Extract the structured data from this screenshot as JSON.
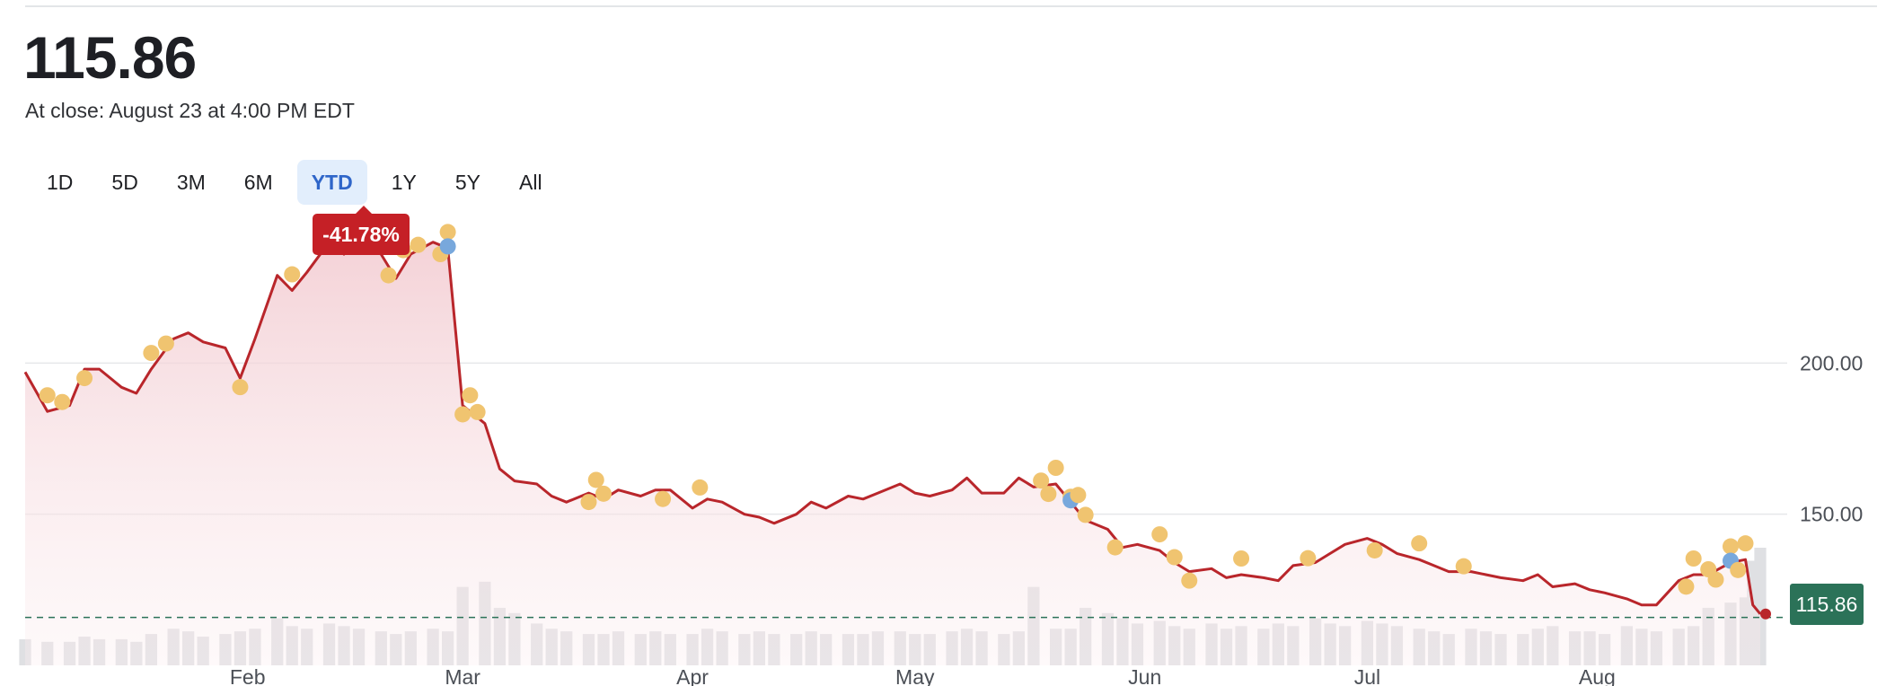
{
  "quote": {
    "price": "115.86",
    "close_note": "At close: August 23 at 4:00 PM EDT"
  },
  "ranges": {
    "tabs": [
      "1D",
      "5D",
      "3M",
      "6M",
      "YTD",
      "1Y",
      "5Y",
      "All"
    ],
    "selected": "YTD"
  },
  "badges": {
    "change_pct": "-41.78%",
    "last_price": "115.86"
  },
  "colors": {
    "line": "#b9262b",
    "area_fill": "#f4d4d8",
    "event_dot": "#f0c470",
    "event_dot_blue": "#78a8dc",
    "volume": "#dfe0e3",
    "baseline": "#2b7258",
    "active_tab": "#2f66c9"
  },
  "chart_data": {
    "type": "line",
    "ylim": [
      100,
      250
    ],
    "y_ticks": [
      "200.00",
      "150.00"
    ],
    "y_tick_values": [
      200,
      150
    ],
    "month_labels": [
      "Feb",
      "Mar",
      "Apr",
      "May",
      "Jun",
      "Jul",
      "Aug"
    ],
    "month_dates": [
      "2024-02-01",
      "2024-03-01",
      "2024-04-01",
      "2024-05-01",
      "2024-06-01",
      "2024-07-01",
      "2024-08-01"
    ],
    "baseline_value": 115.86,
    "x": [
      "2024-01-02",
      "2024-01-05",
      "2024-01-08",
      "2024-01-10",
      "2024-01-12",
      "2024-01-15",
      "2024-01-17",
      "2024-01-19",
      "2024-01-22",
      "2024-01-24",
      "2024-01-26",
      "2024-01-29",
      "2024-01-31",
      "2024-02-02",
      "2024-02-05",
      "2024-02-07",
      "2024-02-09",
      "2024-02-12",
      "2024-02-14",
      "2024-02-16",
      "2024-02-19",
      "2024-02-21",
      "2024-02-23",
      "2024-02-26",
      "2024-02-28",
      "2024-03-01",
      "2024-03-04",
      "2024-03-06",
      "2024-03-08",
      "2024-03-11",
      "2024-03-13",
      "2024-03-15",
      "2024-03-18",
      "2024-03-20",
      "2024-03-22",
      "2024-03-25",
      "2024-03-27",
      "2024-03-29",
      "2024-04-01",
      "2024-04-03",
      "2024-04-05",
      "2024-04-08",
      "2024-04-10",
      "2024-04-12",
      "2024-04-15",
      "2024-04-17",
      "2024-04-19",
      "2024-04-22",
      "2024-04-24",
      "2024-04-26",
      "2024-04-29",
      "2024-05-01",
      "2024-05-03",
      "2024-05-06",
      "2024-05-08",
      "2024-05-10",
      "2024-05-13",
      "2024-05-15",
      "2024-05-17",
      "2024-05-20",
      "2024-05-22",
      "2024-05-24",
      "2024-05-27",
      "2024-05-29",
      "2024-05-31",
      "2024-06-03",
      "2024-06-05",
      "2024-06-07",
      "2024-06-10",
      "2024-06-12",
      "2024-06-14",
      "2024-06-17",
      "2024-06-19",
      "2024-06-21",
      "2024-06-24",
      "2024-06-26",
      "2024-06-28",
      "2024-07-01",
      "2024-07-03",
      "2024-07-05",
      "2024-07-08",
      "2024-07-10",
      "2024-07-12",
      "2024-07-15",
      "2024-07-17",
      "2024-07-19",
      "2024-07-22",
      "2024-07-24",
      "2024-07-26",
      "2024-07-29",
      "2024-07-31",
      "2024-08-02",
      "2024-08-05",
      "2024-08-07",
      "2024-08-09",
      "2024-08-12",
      "2024-08-14",
      "2024-08-16",
      "2024-08-19",
      "2024-08-21",
      "2024-08-22",
      "2024-08-23"
    ],
    "series": [
      {
        "values": [
          197,
          184,
          186,
          198,
          198,
          192,
          190,
          198,
          208,
          210,
          207,
          205,
          195,
          208,
          229,
          224,
          230,
          240,
          236,
          243,
          236,
          228,
          236,
          240,
          238,
          186,
          180,
          165,
          161,
          160,
          156,
          154,
          157,
          155,
          158,
          156,
          158,
          158,
          152,
          155,
          154,
          150,
          149,
          147,
          150,
          154,
          152,
          156,
          155,
          157,
          160,
          157,
          156,
          158,
          162,
          157,
          157,
          162,
          159,
          160,
          154,
          148,
          145,
          139,
          140,
          138,
          134,
          131,
          132,
          129,
          130,
          129,
          128,
          133,
          134,
          137,
          140,
          142,
          140,
          137,
          135,
          133,
          131,
          131,
          130,
          129,
          128,
          130,
          126,
          127,
          125,
          124,
          122,
          120,
          120,
          128,
          130,
          130,
          134,
          135,
          120,
          117
        ]
      }
    ],
    "volume": [
      10,
      9,
      9,
      11,
      10,
      10,
      9,
      12,
      14,
      13,
      11,
      12,
      13,
      14,
      18,
      15,
      14,
      16,
      15,
      14,
      13,
      12,
      13,
      14,
      13,
      30,
      32,
      22,
      20,
      16,
      14,
      13,
      12,
      12,
      13,
      12,
      13,
      12,
      12,
      14,
      13,
      12,
      13,
      12,
      12,
      13,
      12,
      12,
      12,
      13,
      13,
      12,
      12,
      13,
      14,
      13,
      12,
      13,
      30,
      14,
      14,
      22,
      20,
      18,
      16,
      17,
      15,
      14,
      16,
      14,
      15,
      14,
      16,
      15,
      18,
      16,
      15,
      17,
      16,
      15,
      14,
      13,
      12,
      14,
      13,
      12,
      12,
      14,
      15,
      13,
      13,
      12,
      15,
      14,
      13,
      14,
      15,
      22,
      24,
      26,
      40,
      45
    ],
    "events": [
      {
        "date": "2024-01-05",
        "kind": "gold"
      },
      {
        "date": "2024-01-07",
        "kind": "gold"
      },
      {
        "date": "2024-01-10",
        "kind": "gold"
      },
      {
        "date": "2024-01-19",
        "kind": "gold"
      },
      {
        "date": "2024-01-21",
        "kind": "gold"
      },
      {
        "date": "2024-01-31",
        "kind": "gold"
      },
      {
        "date": "2024-02-07",
        "kind": "gold"
      },
      {
        "date": "2024-02-16",
        "kind": "gold"
      },
      {
        "date": "2024-02-20",
        "kind": "gold"
      },
      {
        "date": "2024-02-22",
        "kind": "gold"
      },
      {
        "date": "2024-02-24",
        "kind": "gold"
      },
      {
        "date": "2024-02-27",
        "kind": "gold"
      },
      {
        "date": "2024-02-28",
        "kind": "gold"
      },
      {
        "date": "2024-02-28",
        "kind": "blue"
      },
      {
        "date": "2024-03-01",
        "kind": "gold"
      },
      {
        "date": "2024-03-02",
        "kind": "gold"
      },
      {
        "date": "2024-03-03",
        "kind": "gold"
      },
      {
        "date": "2024-03-18",
        "kind": "gold"
      },
      {
        "date": "2024-03-19",
        "kind": "gold"
      },
      {
        "date": "2024-03-20",
        "kind": "gold"
      },
      {
        "date": "2024-03-28",
        "kind": "gold"
      },
      {
        "date": "2024-04-02",
        "kind": "gold"
      },
      {
        "date": "2024-05-18",
        "kind": "gold"
      },
      {
        "date": "2024-05-19",
        "kind": "gold"
      },
      {
        "date": "2024-05-20",
        "kind": "gold"
      },
      {
        "date": "2024-05-22",
        "kind": "gold"
      },
      {
        "date": "2024-05-22",
        "kind": "blue"
      },
      {
        "date": "2024-05-23",
        "kind": "gold"
      },
      {
        "date": "2024-05-24",
        "kind": "gold"
      },
      {
        "date": "2024-05-28",
        "kind": "gold"
      },
      {
        "date": "2024-06-03",
        "kind": "gold"
      },
      {
        "date": "2024-06-05",
        "kind": "gold"
      },
      {
        "date": "2024-06-07",
        "kind": "gold"
      },
      {
        "date": "2024-06-14",
        "kind": "gold"
      },
      {
        "date": "2024-06-23",
        "kind": "gold"
      },
      {
        "date": "2024-07-02",
        "kind": "gold"
      },
      {
        "date": "2024-07-08",
        "kind": "gold"
      },
      {
        "date": "2024-07-14",
        "kind": "gold"
      },
      {
        "date": "2024-08-13",
        "kind": "gold"
      },
      {
        "date": "2024-08-14",
        "kind": "gold"
      },
      {
        "date": "2024-08-16",
        "kind": "gold"
      },
      {
        "date": "2024-08-17",
        "kind": "gold"
      },
      {
        "date": "2024-08-19",
        "kind": "gold"
      },
      {
        "date": "2024-08-19",
        "kind": "blue"
      },
      {
        "date": "2024-08-20",
        "kind": "gold"
      },
      {
        "date": "2024-08-21",
        "kind": "gold"
      }
    ]
  }
}
